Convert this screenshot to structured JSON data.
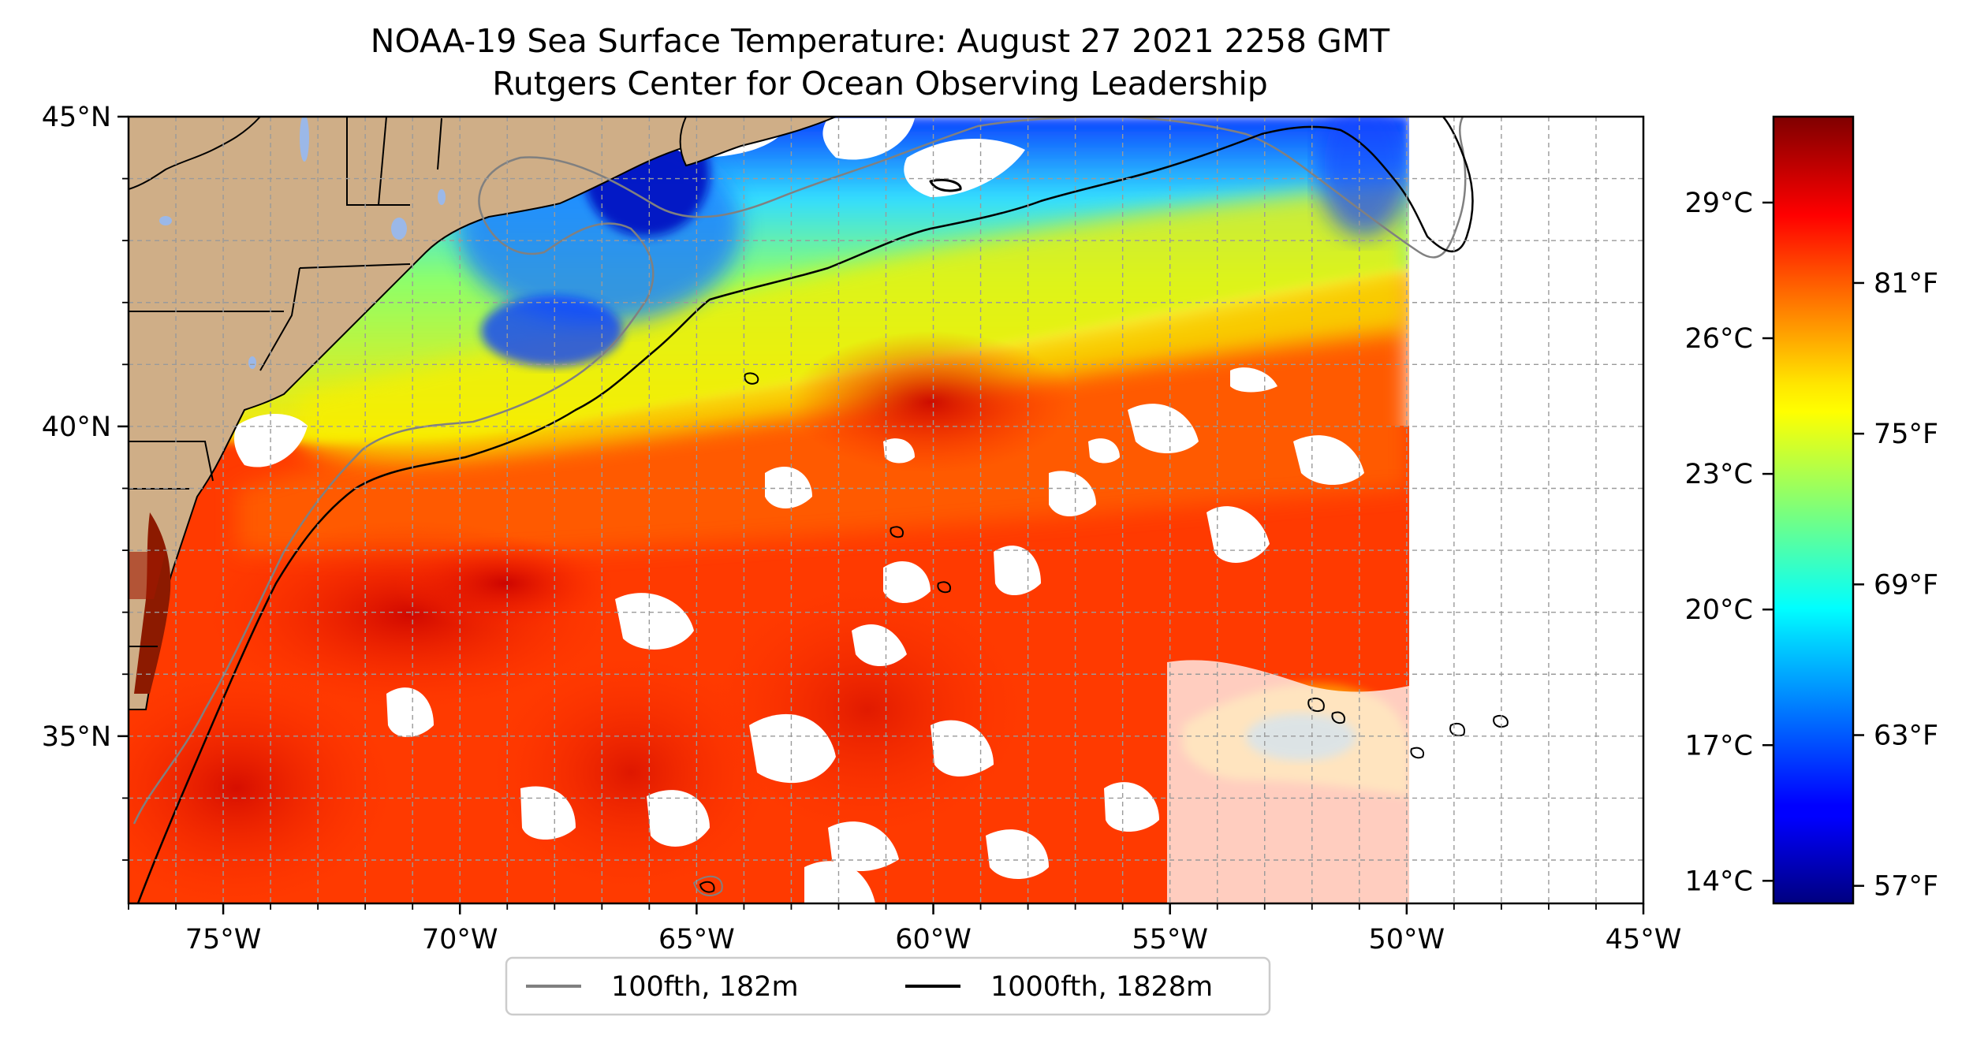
{
  "title": {
    "line1": "NOAA-19 Sea Surface Temperature: August 27 2021 2258 GMT",
    "line2": "Rutgers Center for Ocean Observing Leadership"
  },
  "map": {
    "lon_range": [
      -77,
      -45
    ],
    "lat_range": [
      32.3,
      45
    ],
    "x_ticks": [
      {
        "lon": -75,
        "label": "75°W"
      },
      {
        "lon": -70,
        "label": "70°W"
      },
      {
        "lon": -65,
        "label": "65°W"
      },
      {
        "lon": -60,
        "label": "60°W"
      },
      {
        "lon": -55,
        "label": "55°W"
      },
      {
        "lon": -50,
        "label": "50°W"
      },
      {
        "lon": -45,
        "label": "45°W"
      }
    ],
    "y_ticks": [
      {
        "lat": 45,
        "label": "45°N"
      },
      {
        "lat": 40,
        "label": "40°N"
      },
      {
        "lat": 35,
        "label": "35°N"
      }
    ],
    "grid": true,
    "grid_spacing_deg": 1,
    "colors": {
      "land": "#cfae87",
      "lakes": "#9bb8e8",
      "no_data": "#ffffff"
    }
  },
  "legend": {
    "placement": "bottom-center",
    "entries": [
      {
        "label": "100fth, 182m",
        "color": "#808080"
      },
      {
        "label": "1000fth, 1828m",
        "color": "#000000"
      }
    ]
  },
  "colorbar": {
    "colormap": "jet",
    "range_c": [
      13.5,
      30.9
    ],
    "celsius_ticks": [
      {
        "value": 14,
        "label": "14°C"
      },
      {
        "value": 17,
        "label": "17°C"
      },
      {
        "value": 20,
        "label": "20°C"
      },
      {
        "value": 23,
        "label": "23°C"
      },
      {
        "value": 26,
        "label": "26°C"
      },
      {
        "value": 29,
        "label": "29°C"
      }
    ],
    "fahrenheit_ticks": [
      {
        "value": 57,
        "label": "57°F"
      },
      {
        "value": 63,
        "label": "63°F"
      },
      {
        "value": 69,
        "label": "69°F"
      },
      {
        "value": 75,
        "label": "75°F"
      },
      {
        "value": 81,
        "label": "81°F"
      }
    ]
  }
}
